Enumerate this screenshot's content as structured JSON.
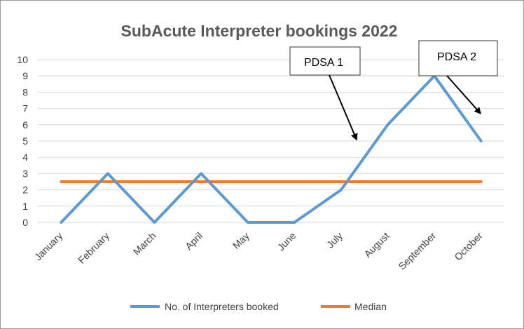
{
  "chart_data": {
    "type": "line",
    "title": "SubAcute Interpreter bookings 2022",
    "categories": [
      "January",
      "February",
      "March",
      "April",
      "May",
      "June",
      "July",
      "August",
      "September",
      "October"
    ],
    "series": [
      {
        "name": "No. of Interpreters booked",
        "values": [
          0,
          3,
          0,
          3,
          0,
          0,
          2,
          6,
          9,
          5
        ],
        "color": "#5b9bd5"
      },
      {
        "name": "Median",
        "values": [
          2.5,
          2.5,
          2.5,
          2.5,
          2.5,
          2.5,
          2.5,
          2.5,
          2.5,
          2.5
        ],
        "color": "#ed7d31"
      }
    ],
    "ylim": [
      0,
      10
    ],
    "yticks": [
      0,
      1,
      2,
      3,
      4,
      5,
      6,
      7,
      8,
      9,
      10
    ],
    "grid": true,
    "legend_position": "bottom",
    "annotations": [
      {
        "text": "PDSA 1",
        "points_to": "August"
      },
      {
        "text": "PDSA 2",
        "points_to": "October"
      }
    ]
  }
}
